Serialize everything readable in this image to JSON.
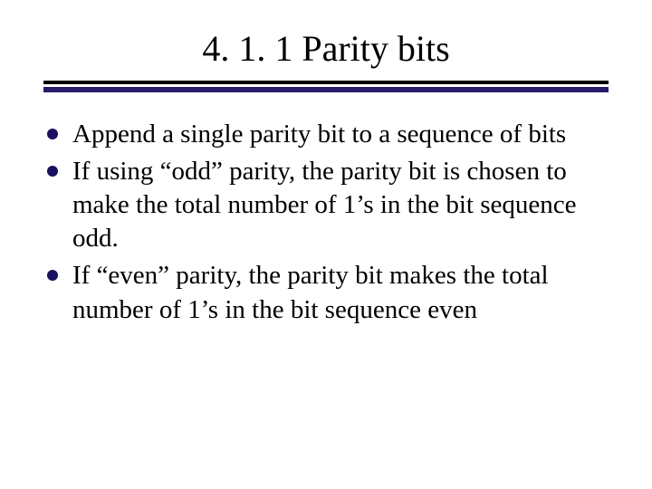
{
  "slide": {
    "title": "4. 1. 1 Parity bits",
    "title_color": "#000000",
    "title_fontsize": 40,
    "divider": {
      "top_color": "#000000",
      "top_height": 4,
      "gap_height": 3,
      "bottom_color": "#2a1a6a",
      "bottom_height": 6
    },
    "bullet_marker_color": "#1a1060",
    "body_fontsize": 29,
    "body_color": "#000000",
    "background_color": "#ffffff",
    "bullets": [
      "Append a single parity bit to a sequence of bits",
      "If using “odd” parity, the parity bit is chosen to make the total number of 1’s in the bit sequence odd.",
      "If “even” parity, the parity bit makes the total number of 1’s in the bit sequence even"
    ]
  }
}
